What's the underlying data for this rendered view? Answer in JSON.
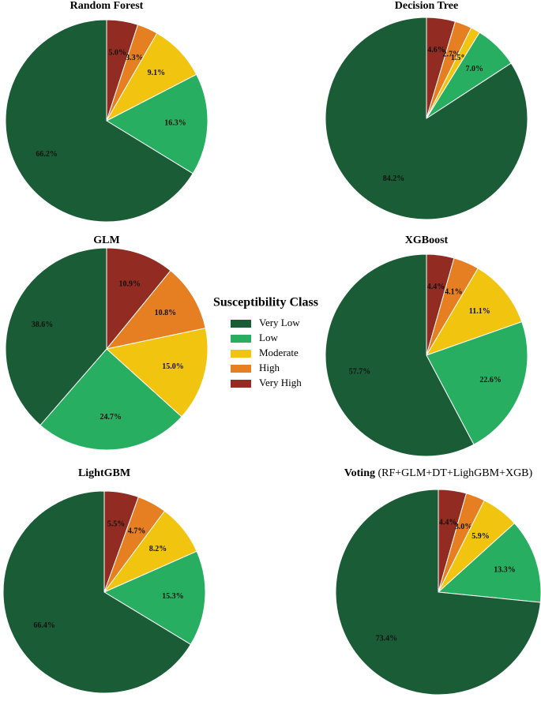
{
  "chart_data": [
    {
      "type": "pie",
      "title": "Random Forest",
      "legend_title": "Susceptibility Class",
      "categories": [
        "Very Low",
        "Low",
        "Moderate",
        "High",
        "Very High"
      ],
      "values": [
        66.2,
        16.3,
        9.1,
        3.3,
        5.0
      ],
      "value_labels": [
        "66.2%",
        "16.3%",
        "9.1%",
        "3.3%",
        "5.0%"
      ],
      "colors": [
        "#1a5c35",
        "#27ae60",
        "#f1c40f",
        "#e67e22",
        "#922b21"
      ]
    },
    {
      "type": "pie",
      "title": "Decision Tree",
      "categories": [
        "Very Low",
        "Low",
        "Moderate",
        "High",
        "Very High"
      ],
      "values": [
        84.2,
        7.0,
        1.5,
        2.7,
        4.6
      ],
      "value_labels": [
        "84.2%",
        "7.0%",
        "1.5%",
        "2.7%",
        "4.6%"
      ],
      "colors": [
        "#1a5c35",
        "#27ae60",
        "#f1c40f",
        "#e67e22",
        "#922b21"
      ]
    },
    {
      "type": "pie",
      "title": "GLM",
      "categories": [
        "Very Low",
        "Low",
        "Moderate",
        "High",
        "Very High"
      ],
      "values": [
        38.6,
        24.7,
        15.0,
        10.8,
        10.9
      ],
      "value_labels": [
        "38.6%",
        "24.7%",
        "15.0%",
        "10.8%",
        "10.9%"
      ],
      "colors": [
        "#1a5c35",
        "#27ae60",
        "#f1c40f",
        "#e67e22",
        "#922b21"
      ]
    },
    {
      "type": "pie",
      "title": "XGBoost",
      "categories": [
        "Very Low",
        "Low",
        "Moderate",
        "High",
        "Very High"
      ],
      "values": [
        57.7,
        22.6,
        11.1,
        4.1,
        4.4
      ],
      "value_labels": [
        "57.7%",
        "22.6%",
        "11.1%",
        "4.1%",
        "4.4%"
      ],
      "colors": [
        "#1a5c35",
        "#27ae60",
        "#f1c40f",
        "#e67e22",
        "#922b21"
      ]
    },
    {
      "type": "pie",
      "title": "LightGBM",
      "categories": [
        "Very Low",
        "Low",
        "Moderate",
        "High",
        "Very High"
      ],
      "values": [
        66.4,
        15.3,
        8.2,
        4.7,
        5.5
      ],
      "value_labels": [
        "66.4%",
        "15.3%",
        "8.2%",
        "4.7%",
        "5.5%"
      ],
      "colors": [
        "#1a5c35",
        "#27ae60",
        "#f1c40f",
        "#e67e22",
        "#922b21"
      ]
    },
    {
      "type": "pie",
      "title": "Voting",
      "subtitle": "(RF+GLM+DT+LighGBM+XGB)",
      "categories": [
        "Very Low",
        "Low",
        "Moderate",
        "High",
        "Very High"
      ],
      "values": [
        73.4,
        13.3,
        5.9,
        3.0,
        4.4
      ],
      "value_labels": [
        "73.4%",
        "13.3%",
        "5.9%",
        "3.0%",
        "4.4%"
      ],
      "colors": [
        "#1a5c35",
        "#27ae60",
        "#f1c40f",
        "#e67e22",
        "#922b21"
      ]
    }
  ]
}
